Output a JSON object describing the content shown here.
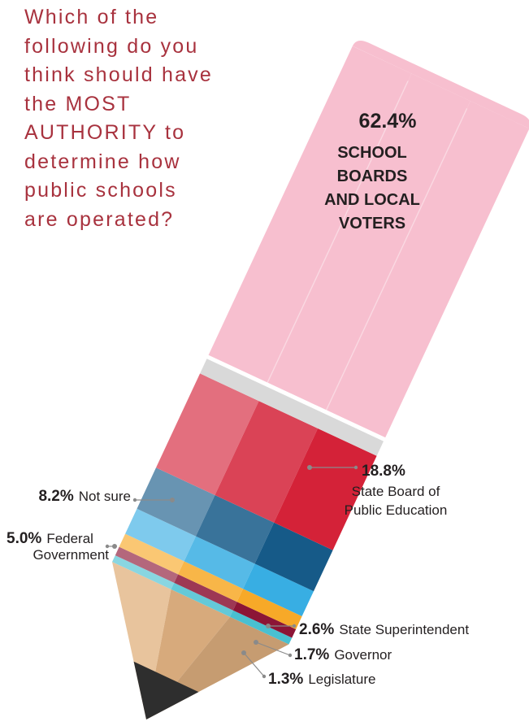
{
  "question": {
    "lines": [
      "Which of the",
      "following do you",
      "think should have",
      "the MOST",
      "AUTHORITY to",
      "determine how",
      "public schools",
      "are operated?"
    ]
  },
  "chart_data": {
    "type": "bar",
    "orientation": "stacked single bar (pencil)",
    "title": "Which of the following do you think should have the MOST AUTHORITY to determine how public schools are operated?",
    "unit": "%",
    "series": [
      {
        "name": "School Boards and Local Voters",
        "value": 62.4,
        "pct_label": "62.4%",
        "label_lines": [
          "SCHOOL",
          "BOARDS",
          "AND LOCAL",
          "VOTERS"
        ],
        "color": "#f7bfcf"
      },
      {
        "name": "State Board of Public Education",
        "value": 18.8,
        "pct_label": "18.8%",
        "label_lines": [
          "State Board of",
          "Public Education"
        ],
        "color": "#d42238"
      },
      {
        "name": "Not sure",
        "value": 8.2,
        "pct_label": "8.2%",
        "label_lines": [
          "Not sure"
        ],
        "color": "#165a88"
      },
      {
        "name": "Federal Government",
        "value": 5.0,
        "pct_label": "5.0%",
        "label_lines": [
          "Federal",
          "Government"
        ],
        "color": "#38aee3"
      },
      {
        "name": "State Superintendent",
        "value": 2.6,
        "pct_label": "2.6%",
        "label_lines": [
          "State Superintendent"
        ],
        "color": "#f7a928"
      },
      {
        "name": "Governor",
        "value": 1.7,
        "pct_label": "1.7%",
        "label_lines": [
          "Governor"
        ],
        "color": "#8c1536"
      },
      {
        "name": "Legislature",
        "value": 1.3,
        "pct_label": "1.3%",
        "label_lines": [
          "Legislature"
        ],
        "color": "#49c0d1"
      }
    ]
  }
}
